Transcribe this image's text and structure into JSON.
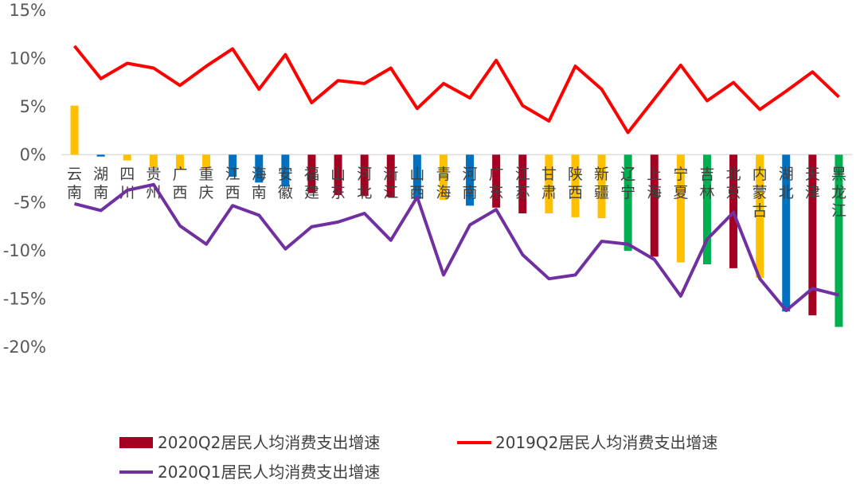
{
  "chart_data": {
    "type": "bar",
    "categories": [
      "云南",
      "湖南",
      "四川",
      "贵州",
      "广西",
      "重庆",
      "江西",
      "海南",
      "安徽",
      "福建",
      "山东",
      "河北",
      "浙江",
      "山西",
      "青海",
      "河南",
      "广东",
      "江苏",
      "甘肃",
      "陕西",
      "新疆",
      "辽宁",
      "上海",
      "宁夏",
      "吉林",
      "北京",
      "内蒙古",
      "湖北",
      "天津",
      "黑龙江"
    ],
    "series": [
      {
        "name": "2020Q2居民人均消费支出增速",
        "type": "bar",
        "values": [
          5.1,
          -0.2,
          -0.6,
          -1.3,
          -1.5,
          -1.5,
          -2.3,
          -2.9,
          -3.3,
          -4.0,
          -4.2,
          -4.3,
          -4.4,
          -4.6,
          -4.7,
          -5.3,
          -5.5,
          -6.1,
          -6.1,
          -6.5,
          -6.6,
          -10.0,
          -10.6,
          -11.2,
          -11.4,
          -11.8,
          -12.8,
          -16.3,
          -16.7,
          -17.9
        ]
      },
      {
        "name": "2019Q2居民人均消费支出增速",
        "type": "line",
        "values": [
          11.3,
          7.9,
          9.5,
          9.0,
          7.2,
          9.2,
          11.0,
          6.8,
          10.4,
          5.4,
          7.7,
          7.4,
          9.0,
          4.8,
          7.4,
          5.9,
          9.8,
          5.1,
          3.5,
          9.2,
          6.8,
          2.3,
          5.8,
          9.3,
          5.6,
          7.5,
          4.7,
          6.6,
          8.6,
          6.0
        ]
      },
      {
        "name": "2020Q1居民人均消费支出增速",
        "type": "line",
        "values": [
          -5.1,
          -5.8,
          -3.7,
          -3.1,
          -7.4,
          -9.3,
          -5.3,
          -6.3,
          -9.8,
          -7.5,
          -7.0,
          -6.1,
          -8.9,
          -4.4,
          -12.5,
          -7.3,
          -5.7,
          -10.4,
          -12.9,
          -12.5,
          -9.0,
          -9.3,
          -10.9,
          -14.7,
          -8.8,
          -6.0,
          -12.9,
          -16.2,
          -13.9,
          -14.6
        ]
      }
    ],
    "bar_colors": [
      "#FFC000",
      "#0070C0",
      "#FFC000",
      "#FFC000",
      "#FFC000",
      "#FFC000",
      "#0070C0",
      "#0070C0",
      "#0070C0",
      "#A50021",
      "#A50021",
      "#A50021",
      "#A50021",
      "#0070C0",
      "#FFC000",
      "#0070C0",
      "#A50021",
      "#A50021",
      "#FFC000",
      "#FFC000",
      "#FFC000",
      "#00B050",
      "#A50021",
      "#FFC000",
      "#00B050",
      "#A50021",
      "#FFC000",
      "#0070C0",
      "#A50021",
      "#00B050"
    ],
    "line_colors": {
      "2019": "#FF0000",
      "2020Q1": "#7030A0"
    },
    "legend_bar_color": "#A50021",
    "y_ticks": [
      "15%",
      "10%",
      "5%",
      "0%",
      "-5%",
      "-10%",
      "-15%",
      "-20%"
    ],
    "ylim": [
      -20,
      15
    ],
    "grid": false,
    "legend_position": "bottom"
  }
}
